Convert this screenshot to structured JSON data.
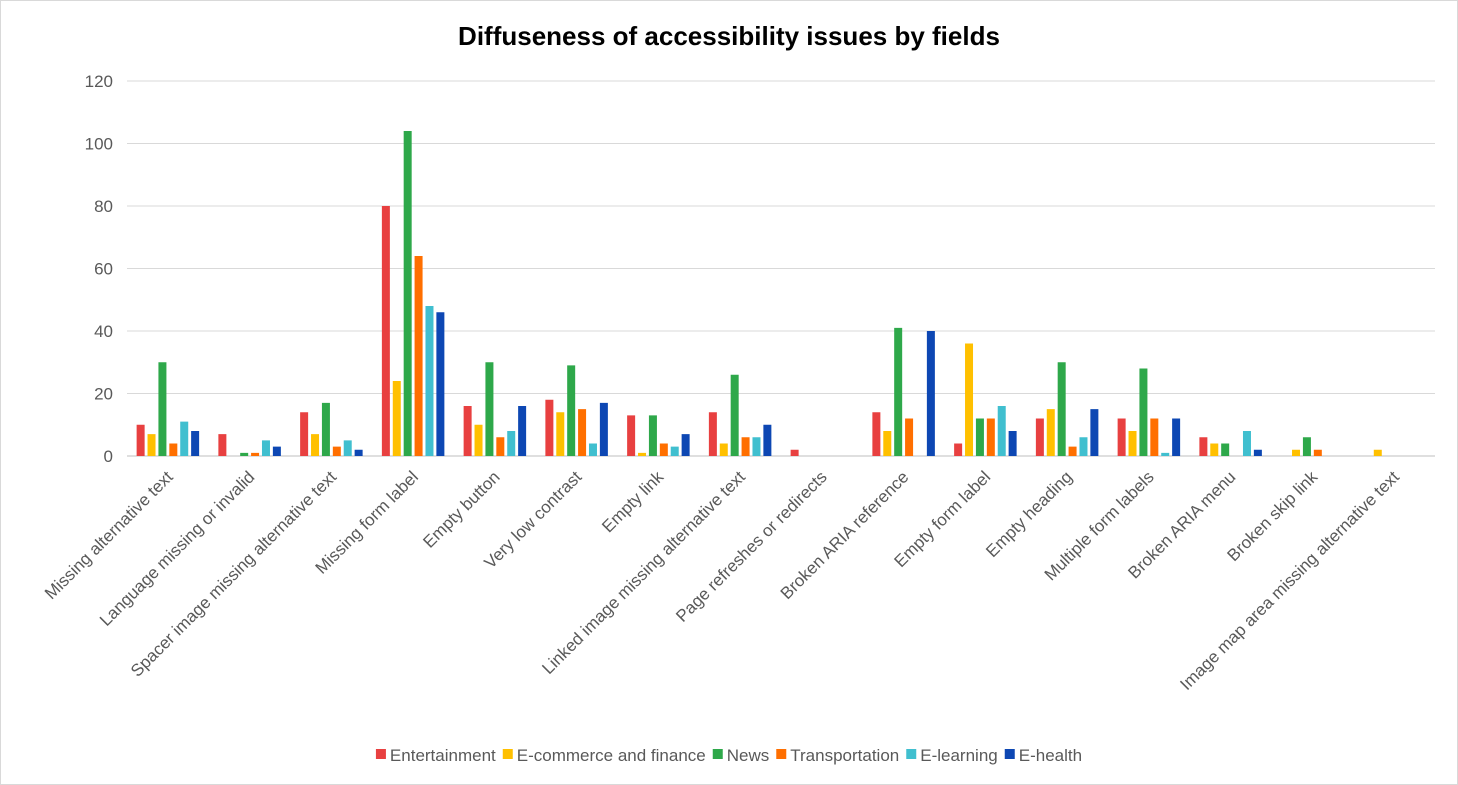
{
  "chart_data": {
    "type": "bar",
    "title": "Diffuseness of accessibility issues by fields",
    "xlabel": "",
    "ylabel": "",
    "ylim": [
      0,
      120
    ],
    "yticks": [
      0,
      20,
      40,
      60,
      80,
      100,
      120
    ],
    "grid": true,
    "legend_position": "bottom",
    "categories": [
      "Missing alternative text",
      "Language missing or invalid",
      "Spacer image missing alternative text",
      "Missing form label",
      "Empty button",
      "Very low contrast",
      "Empty link",
      "Linked image missing alternative text",
      "Page refreshes or redirects",
      "Broken ARIA reference",
      "Empty form label",
      "Empty heading",
      "Multiple form labels",
      "Broken ARIA menu",
      "Broken skip link",
      "Image map area missing alternative text"
    ],
    "series": [
      {
        "name": "Entertainment",
        "color": "#e84040",
        "values": [
          10,
          7,
          14,
          80,
          16,
          18,
          13,
          14,
          2,
          14,
          4,
          12,
          12,
          6,
          0,
          0
        ]
      },
      {
        "name": "E-commerce and finance",
        "color": "#ffc000",
        "values": [
          7,
          0,
          7,
          24,
          10,
          14,
          1,
          4,
          0,
          8,
          36,
          15,
          8,
          4,
          2,
          2
        ]
      },
      {
        "name": "News",
        "color": "#2ea84a",
        "values": [
          30,
          1,
          17,
          104,
          30,
          29,
          13,
          26,
          0,
          41,
          12,
          30,
          28,
          4,
          6,
          0
        ]
      },
      {
        "name": "Transportation",
        "color": "#ff6f00",
        "values": [
          4,
          1,
          3,
          64,
          6,
          15,
          4,
          6,
          0,
          12,
          12,
          3,
          12,
          0,
          2,
          0
        ]
      },
      {
        "name": "E-learning",
        "color": "#40bfcf",
        "values": [
          11,
          5,
          5,
          48,
          8,
          4,
          3,
          6,
          0,
          0,
          16,
          6,
          1,
          8,
          0,
          0
        ]
      },
      {
        "name": "E-health",
        "color": "#0d47b3",
        "values": [
          8,
          3,
          2,
          46,
          16,
          17,
          7,
          10,
          0,
          40,
          8,
          15,
          12,
          2,
          0,
          0
        ]
      }
    ]
  }
}
